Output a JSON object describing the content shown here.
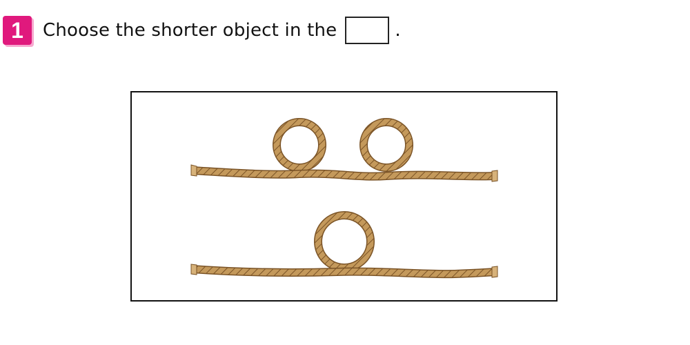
{
  "question": {
    "number": "1",
    "text": "Choose the shorter object in the",
    "trailing": "."
  },
  "colors": {
    "badge": "#e0197d",
    "rope": "#c4995b",
    "rope_dark": "#7a5326"
  },
  "options": [
    {
      "label": "rope with two loops",
      "loops": 2
    },
    {
      "label": "rope with one loop",
      "loops": 1
    }
  ]
}
